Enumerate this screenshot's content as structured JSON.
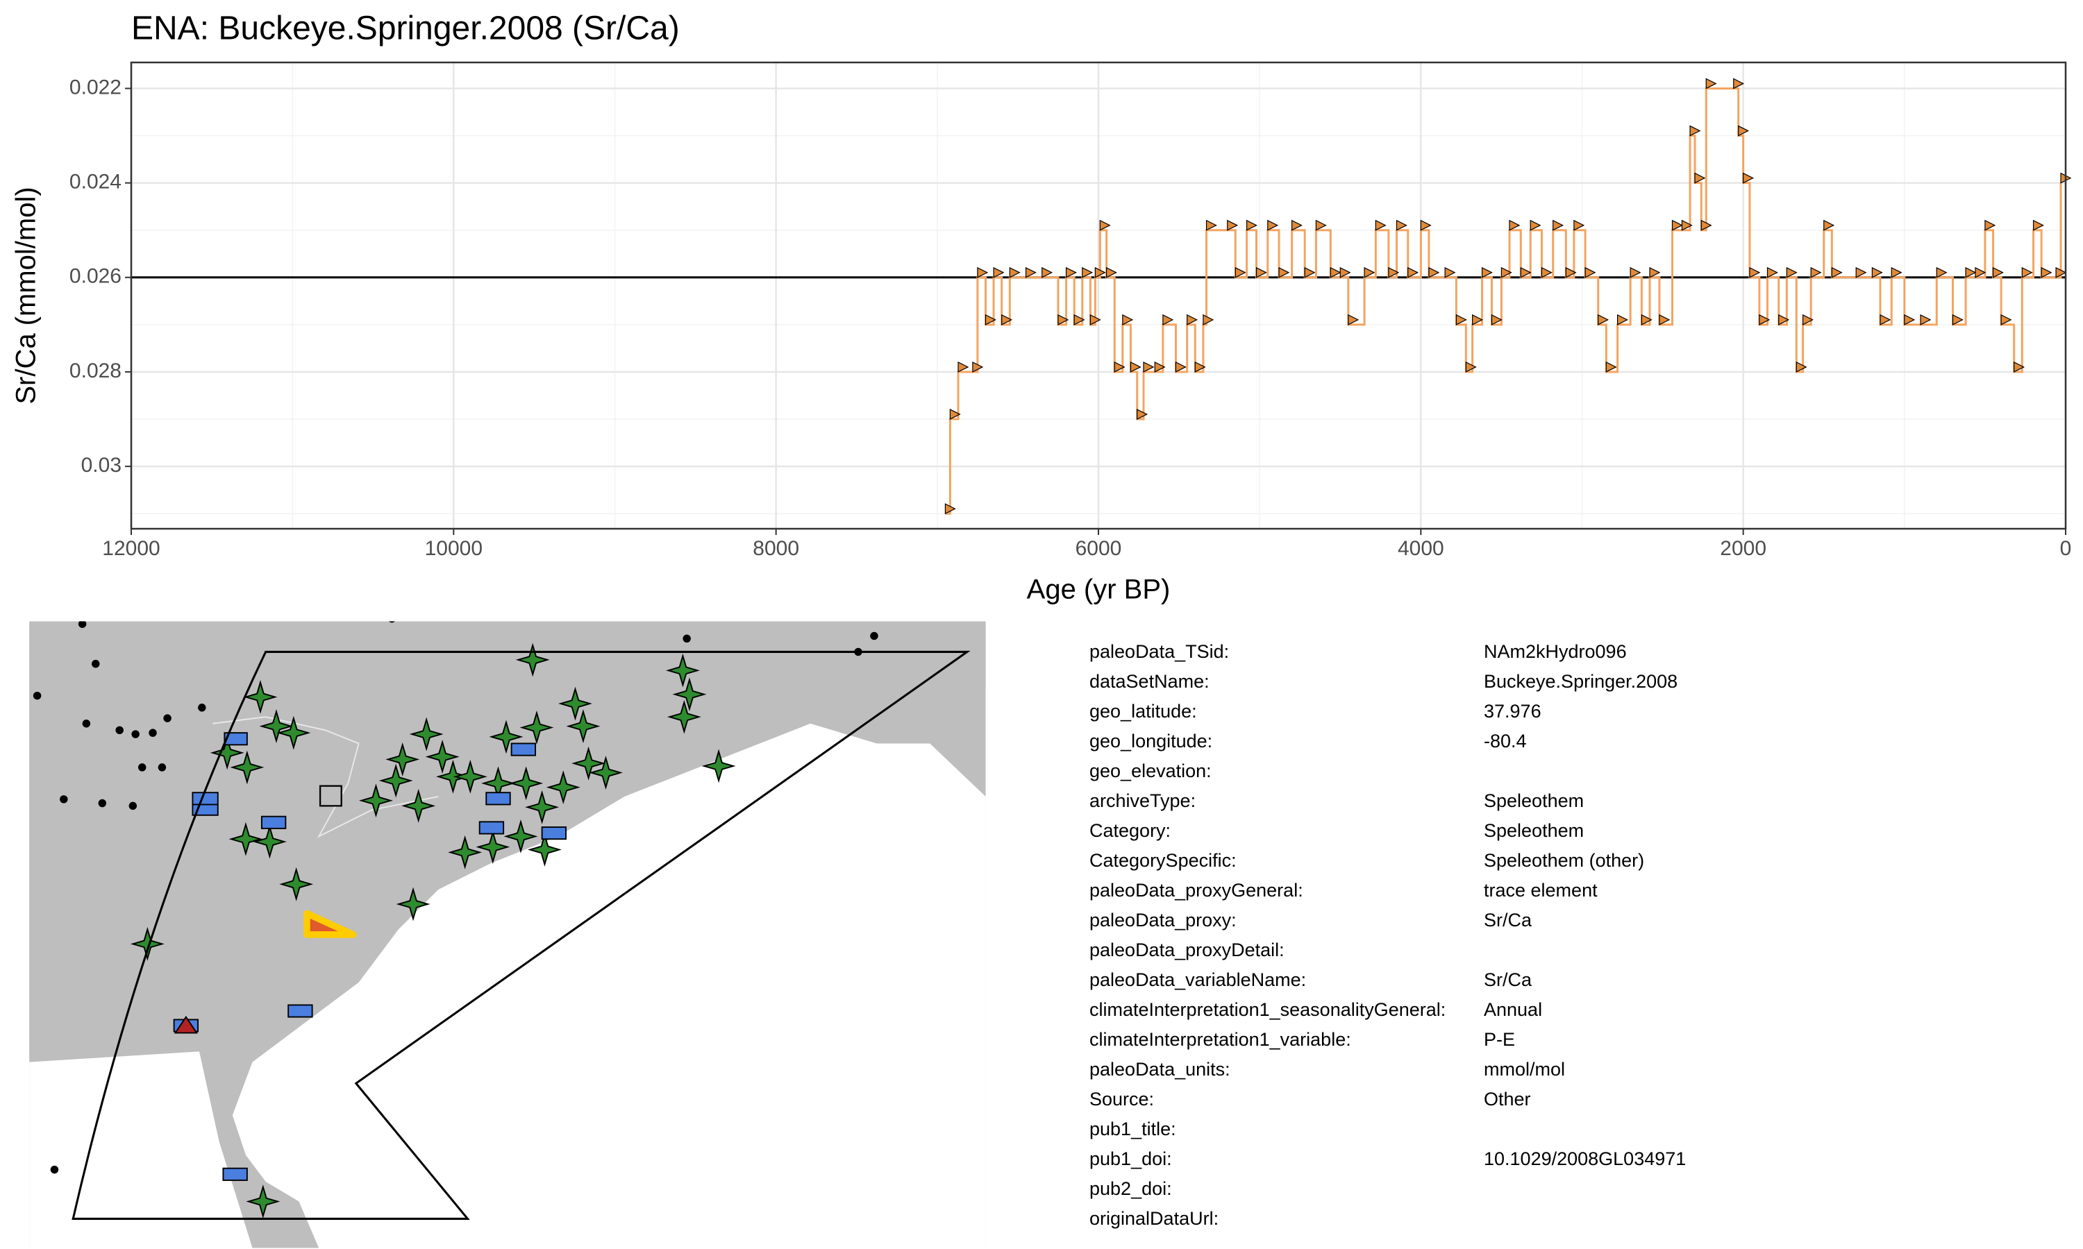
{
  "chart_data": {
    "type": "step",
    "title": "ENA: Buckeye.Springer.2008 (Sr/Ca)",
    "xlabel": "Age (yr BP)",
    "ylabel": "Sr/Ca (mmol/mol)",
    "xlim": [
      12000,
      0
    ],
    "xticks": [
      12000,
      10000,
      8000,
      6000,
      4000,
      2000,
      0
    ],
    "ylim": [
      0.02145,
      0.03132
    ],
    "yticks": [
      0.022,
      0.024,
      0.026,
      0.028,
      0.03
    ],
    "y_reversed": true,
    "grid": true,
    "reference_line": 0.026,
    "color": "#f4a460",
    "marker_color": "#e08a3a",
    "x": [
      6950,
      6920,
      6870,
      6780,
      6750,
      6700,
      6650,
      6600,
      6550,
      6450,
      6350,
      6250,
      6200,
      6150,
      6100,
      6050,
      6020,
      5990,
      5950,
      5900,
      5850,
      5800,
      5760,
      5720,
      5650,
      5600,
      5520,
      5450,
      5400,
      5350,
      5330,
      5200,
      5150,
      5080,
      5020,
      4950,
      4880,
      4800,
      4720,
      4650,
      4560,
      4500,
      4450,
      4350,
      4280,
      4200,
      4150,
      4080,
      4000,
      3950,
      3850,
      3780,
      3720,
      3680,
      3620,
      3560,
      3500,
      3450,
      3380,
      3320,
      3250,
      3180,
      3100,
      3050,
      2980,
      2900,
      2850,
      2780,
      2700,
      2630,
      2580,
      2520,
      2440,
      2380,
      2330,
      2300,
      2260,
      2230,
      2060,
      2030,
      2000,
      1960,
      1900,
      1850,
      1780,
      1730,
      1670,
      1630,
      1580,
      1500,
      1450,
      1300,
      1200,
      1150,
      1080,
      1000,
      900,
      800,
      700,
      620,
      560,
      500,
      450,
      400,
      320,
      270,
      200,
      150,
      60,
      30
    ],
    "values": [
      0.031,
      0.029,
      0.028,
      0.028,
      0.026,
      0.027,
      0.026,
      0.027,
      0.026,
      0.026,
      0.026,
      0.027,
      0.026,
      0.027,
      0.026,
      0.027,
      0.026,
      0.025,
      0.026,
      0.028,
      0.027,
      0.028,
      0.029,
      0.028,
      0.028,
      0.027,
      0.028,
      0.027,
      0.028,
      0.027,
      0.025,
      0.025,
      0.026,
      0.025,
      0.026,
      0.025,
      0.026,
      0.025,
      0.026,
      0.025,
      0.026,
      0.026,
      0.027,
      0.026,
      0.025,
      0.026,
      0.025,
      0.026,
      0.025,
      0.026,
      0.026,
      0.027,
      0.028,
      0.027,
      0.026,
      0.027,
      0.026,
      0.025,
      0.026,
      0.025,
      0.026,
      0.025,
      0.026,
      0.025,
      0.026,
      0.027,
      0.028,
      0.027,
      0.026,
      0.027,
      0.026,
      0.027,
      0.025,
      0.025,
      0.023,
      0.024,
      0.025,
      0.022,
      0.022,
      0.023,
      0.024,
      0.026,
      0.027,
      0.026,
      0.027,
      0.026,
      0.028,
      0.027,
      0.026,
      0.025,
      0.026,
      0.026,
      0.026,
      0.027,
      0.026,
      0.027,
      0.027,
      0.026,
      0.027,
      0.026,
      0.026,
      0.025,
      0.026,
      0.027,
      0.028,
      0.026,
      0.025,
      0.026,
      0.026,
      0.024
    ]
  },
  "metadata": [
    {
      "key": "paleoData_TSid:",
      "value": "NAm2kHydro096"
    },
    {
      "key": "dataSetName:",
      "value": "Buckeye.Springer.2008"
    },
    {
      "key": "geo_latitude:",
      "value": "37.976"
    },
    {
      "key": "geo_longitude:",
      "value": "-80.4"
    },
    {
      "key": "geo_elevation:"
    },
    {
      "key": "archiveType:",
      "value": "Speleothem"
    },
    {
      "key": "Category:",
      "value": "Speleothem"
    },
    {
      "key": "CategorySpecific:",
      "value": "Speleothem (other)"
    },
    {
      "key": "paleoData_proxyGeneral:",
      "value": "trace element"
    },
    {
      "key": "paleoData_proxy:",
      "value": "Sr/Ca"
    },
    {
      "key": "paleoData_proxyDetail:"
    },
    {
      "key": "paleoData_variableName:",
      "value": "Sr/Ca"
    },
    {
      "key": "climateInterpretation1_seasonalityGeneral:",
      "value": "Annual"
    },
    {
      "key": "climateInterpretation1_variable:",
      "value": "P-E"
    },
    {
      "key": "paleoData_units:",
      "value": "mmol/mol"
    },
    {
      "key": "Source:",
      "value": "Other"
    },
    {
      "key": "pub1_title:"
    },
    {
      "key": "pub1_doi:",
      "value": "10.1029/2008GL034971"
    },
    {
      "key": "pub2_doi:"
    },
    {
      "key": "originalDataUrl:"
    }
  ]
}
